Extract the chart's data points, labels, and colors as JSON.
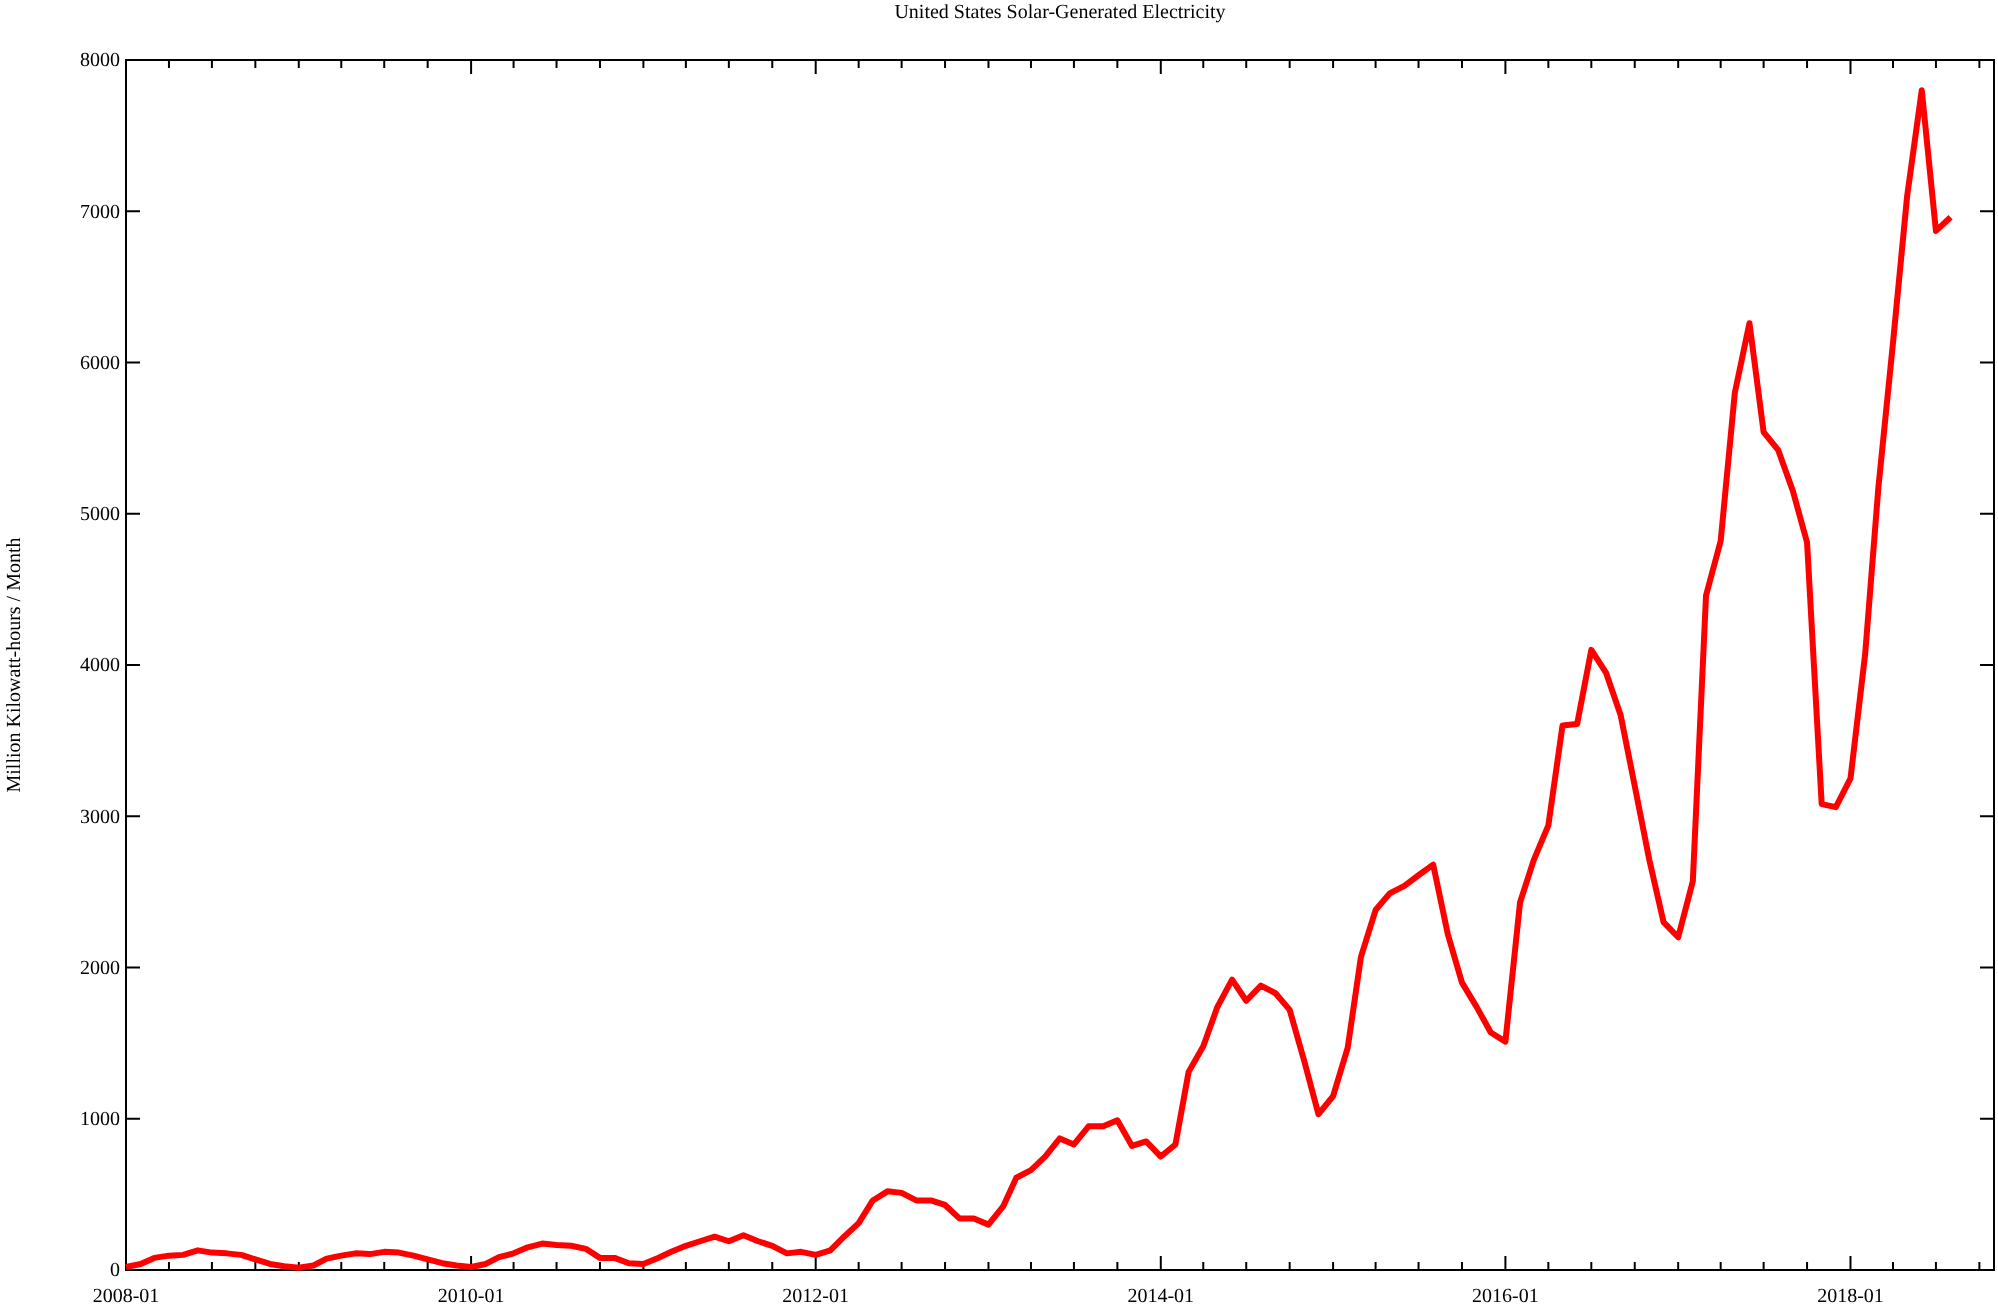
{
  "chart_data": {
    "type": "line",
    "title": "United States Solar-Generated Electricity",
    "ylabel": "Million Kilowatt-hours / Month",
    "x": [
      "2008-01",
      "2008-02",
      "2008-03",
      "2008-04",
      "2008-05",
      "2008-06",
      "2008-07",
      "2008-08",
      "2008-09",
      "2008-10",
      "2008-11",
      "2008-12",
      "2009-01",
      "2009-02",
      "2009-03",
      "2009-04",
      "2009-05",
      "2009-06",
      "2009-07",
      "2009-08",
      "2009-09",
      "2009-10",
      "2009-11",
      "2009-12",
      "2010-01",
      "2010-02",
      "2010-03",
      "2010-04",
      "2010-05",
      "2010-06",
      "2010-07",
      "2010-08",
      "2010-09",
      "2010-10",
      "2010-11",
      "2010-12",
      "2011-01",
      "2011-02",
      "2011-03",
      "2011-04",
      "2011-05",
      "2011-06",
      "2011-07",
      "2011-08",
      "2011-09",
      "2011-10",
      "2011-11",
      "2011-12",
      "2012-01",
      "2012-02",
      "2012-03",
      "2012-04",
      "2012-05",
      "2012-06",
      "2012-07",
      "2012-08",
      "2012-09",
      "2012-10",
      "2012-11",
      "2012-12",
      "2013-01",
      "2013-02",
      "2013-03",
      "2013-04",
      "2013-05",
      "2013-06",
      "2013-07",
      "2013-08",
      "2013-09",
      "2013-10",
      "2013-11",
      "2013-12",
      "2014-01",
      "2014-02",
      "2014-03",
      "2014-04",
      "2014-05",
      "2014-06",
      "2014-07",
      "2014-08",
      "2014-09",
      "2014-10",
      "2014-11",
      "2014-12",
      "2015-01",
      "2015-02",
      "2015-03",
      "2015-04",
      "2015-05",
      "2015-06",
      "2015-07",
      "2015-08",
      "2015-09",
      "2015-10",
      "2015-11",
      "2015-12",
      "2016-01",
      "2016-02",
      "2016-03",
      "2016-04",
      "2016-05",
      "2016-06",
      "2016-07",
      "2016-08",
      "2016-09",
      "2016-10",
      "2016-11",
      "2016-12",
      "2017-01",
      "2017-02",
      "2017-03",
      "2017-04",
      "2017-05",
      "2017-06",
      "2017-07",
      "2017-08",
      "2017-09",
      "2017-10",
      "2017-11",
      "2017-12",
      "2018-01",
      "2018-02",
      "2018-03",
      "2018-04",
      "2018-05",
      "2018-06",
      "2018-07",
      "2018-08"
    ],
    "series": [
      {
        "color": "#ff0000",
        "values": [
          20,
          40,
          80,
          95,
          100,
          130,
          115,
          110,
          100,
          70,
          40,
          25,
          15,
          30,
          75,
          95,
          110,
          105,
          120,
          115,
          95,
          70,
          45,
          30,
          20,
          40,
          85,
          110,
          150,
          175,
          165,
          160,
          140,
          80,
          80,
          45,
          40,
          80,
          120,
          160,
          190,
          220,
          190,
          230,
          190,
          160,
          110,
          120,
          100,
          130,
          220,
          310,
          460,
          520,
          510,
          460,
          460,
          430,
          340,
          340,
          300,
          420,
          610,
          660,
          750,
          870,
          830,
          950,
          950,
          990,
          820,
          850,
          750,
          830,
          1310,
          1480,
          1740,
          1920,
          1780,
          1880,
          1830,
          1720,
          1380,
          1030,
          1150,
          1470,
          2070,
          2380,
          2490,
          2540,
          2610,
          2680,
          2220,
          1900,
          1740,
          1570,
          1510,
          2430,
          2710,
          2940,
          3600,
          3610,
          4100,
          3950,
          3670,
          3200,
          2710,
          2300,
          2200,
          2570,
          4460,
          4820,
          5800,
          6260,
          5540,
          5420,
          5150,
          4810,
          3080,
          3060,
          3250,
          4070,
          5170,
          6130,
          7100,
          7800,
          6870,
          6960
        ]
      }
    ],
    "xlim": [
      "2008-01",
      "2018-11"
    ],
    "xticks": [
      {
        "value": "2008-01",
        "label": "2008-01"
      },
      {
        "value": "2008-04",
        "label": null
      },
      {
        "value": "2008-07",
        "label": null
      },
      {
        "value": "2008-10",
        "label": null
      },
      {
        "value": "2009-01",
        "label": null
      },
      {
        "value": "2009-04",
        "label": null
      },
      {
        "value": "2009-07",
        "label": null
      },
      {
        "value": "2009-10",
        "label": null
      },
      {
        "value": "2010-01",
        "label": "2010-01"
      },
      {
        "value": "2010-04",
        "label": null
      },
      {
        "value": "2010-07",
        "label": null
      },
      {
        "value": "2010-10",
        "label": null
      },
      {
        "value": "2011-01",
        "label": null
      },
      {
        "value": "2011-04",
        "label": null
      },
      {
        "value": "2011-07",
        "label": null
      },
      {
        "value": "2011-10",
        "label": null
      },
      {
        "value": "2012-01",
        "label": "2012-01"
      },
      {
        "value": "2012-04",
        "label": null
      },
      {
        "value": "2012-07",
        "label": null
      },
      {
        "value": "2012-10",
        "label": null
      },
      {
        "value": "2013-01",
        "label": null
      },
      {
        "value": "2013-04",
        "label": null
      },
      {
        "value": "2013-07",
        "label": null
      },
      {
        "value": "2013-10",
        "label": null
      },
      {
        "value": "2014-01",
        "label": "2014-01"
      },
      {
        "value": "2014-04",
        "label": null
      },
      {
        "value": "2014-07",
        "label": null
      },
      {
        "value": "2014-10",
        "label": null
      },
      {
        "value": "2015-01",
        "label": null
      },
      {
        "value": "2015-04",
        "label": null
      },
      {
        "value": "2015-07",
        "label": null
      },
      {
        "value": "2015-10",
        "label": null
      },
      {
        "value": "2016-01",
        "label": "2016-01"
      },
      {
        "value": "2016-04",
        "label": null
      },
      {
        "value": "2016-07",
        "label": null
      },
      {
        "value": "2016-10",
        "label": null
      },
      {
        "value": "2017-01",
        "label": null
      },
      {
        "value": "2017-04",
        "label": null
      },
      {
        "value": "2017-07",
        "label": null
      },
      {
        "value": "2017-10",
        "label": null
      },
      {
        "value": "2018-01",
        "label": "2018-01"
      },
      {
        "value": "2018-04",
        "label": null
      },
      {
        "value": "2018-07",
        "label": null
      },
      {
        "value": "2018-10",
        "label": null
      }
    ],
    "ylim": [
      0,
      8000
    ],
    "yticks": [
      0,
      1000,
      2000,
      3000,
      4000,
      5000,
      6000,
      7000,
      8000
    ],
    "line_style": "solid"
  }
}
